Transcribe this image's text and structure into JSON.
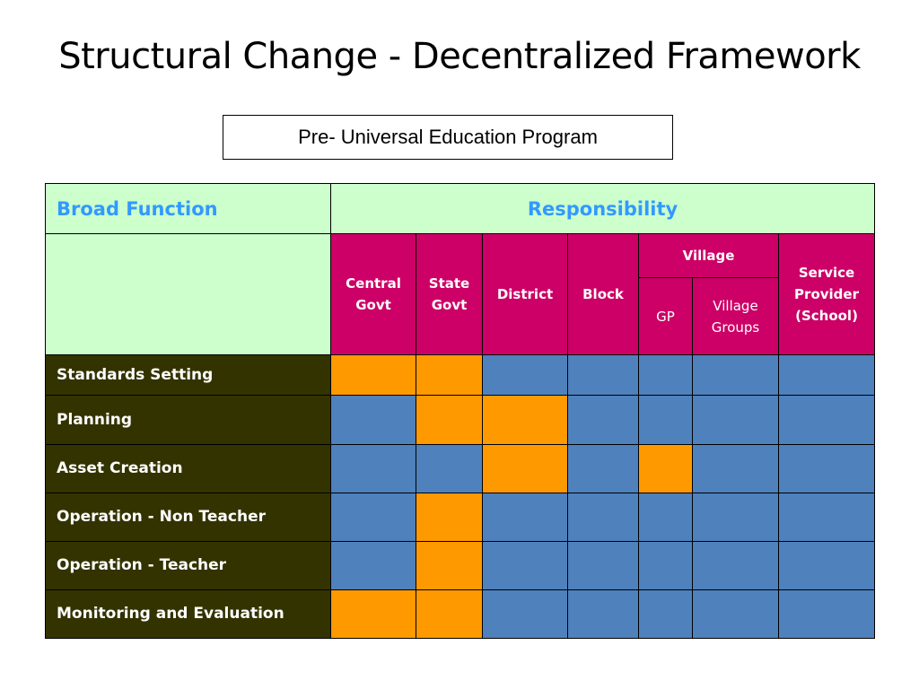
{
  "title": "Structural Change  - Decentralized Framework",
  "program_label": "Pre- Universal Education Program",
  "table": {
    "header_function": "Broad Function",
    "header_responsibility": "Responsibility",
    "levels": {
      "central": "Central Govt",
      "state": "State Govt",
      "district": "District",
      "block": "Block",
      "village": "Village",
      "gp": "GP",
      "village_groups": "Village Groups",
      "service_provider": "Service Provider (School)"
    },
    "colors": {
      "responsible": "#ff9900",
      "not_responsible": "#4f81bd"
    },
    "rows": [
      {
        "function": "Standards Setting",
        "responsibility": [
          "orange",
          "orange",
          "blue",
          "blue",
          "blue",
          "blue",
          "blue"
        ]
      },
      {
        "function": "Planning",
        "responsibility": [
          "blue",
          "orange",
          "orange",
          "blue",
          "blue",
          "blue",
          "blue"
        ]
      },
      {
        "function": "Asset Creation",
        "responsibility": [
          "blue",
          "blue",
          "orange",
          "blue",
          "orange",
          "blue",
          "blue"
        ]
      },
      {
        "function": "Operation - Non Teacher",
        "responsibility": [
          "blue",
          "orange",
          "blue",
          "blue",
          "blue",
          "blue",
          "blue"
        ]
      },
      {
        "function": "Operation - Teacher",
        "responsibility": [
          "blue",
          "orange",
          "blue",
          "blue",
          "blue",
          "blue",
          "blue"
        ]
      },
      {
        "function": "Monitoring and Evaluation",
        "responsibility": [
          "orange",
          "orange",
          "blue",
          "blue",
          "blue",
          "blue",
          "blue"
        ]
      }
    ]
  }
}
